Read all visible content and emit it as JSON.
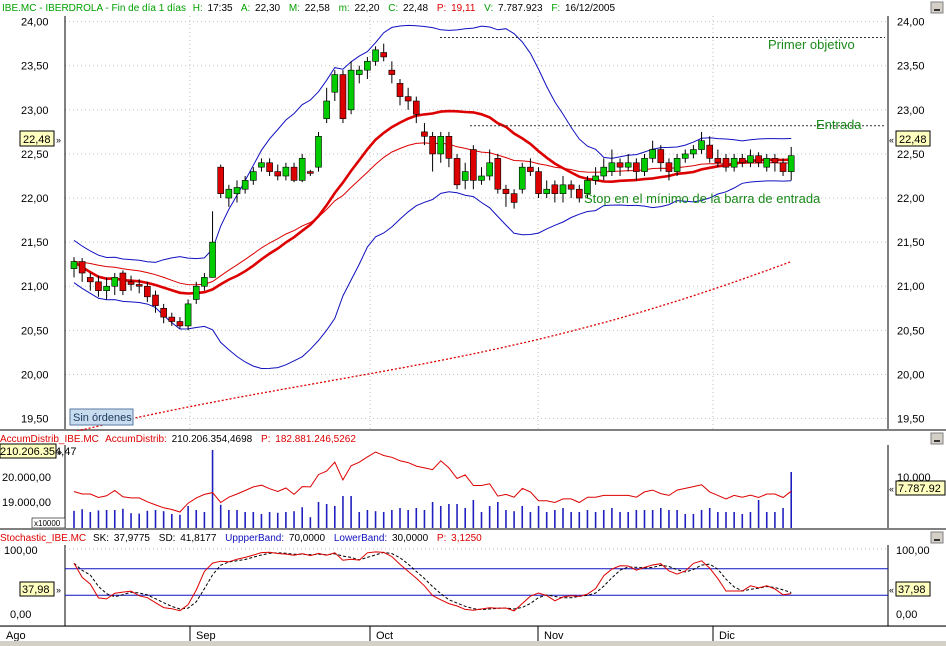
{
  "header": {
    "symbol": "IBE.MC",
    "name": "IBERDROLA",
    "period": "Fin de día 1 días",
    "h_label": "H:",
    "h_value": "17:35",
    "a_label": "A:",
    "a_value": "22,30",
    "m_label": "M:",
    "m_value": "22,58",
    "min_label": "m:",
    "min_value": "22,20",
    "c_label": "C:",
    "c_value": "22,48",
    "p_label": "P:",
    "p_value": "19,11",
    "v_label": "V:",
    "v_value": "7.787.923",
    "f_label": "F:",
    "f_value": "16/12/2005"
  },
  "price_axis": {
    "ticks": [
      "24,00",
      "23,50",
      "23,00",
      "22,50",
      "22,00",
      "21,50",
      "21,00",
      "20,50",
      "20,00",
      "19,50"
    ],
    "current": "22,48"
  },
  "annotations": {
    "primer_objetivo": "Primer objetivo",
    "entrada": "Entrada",
    "stop": "Stop en el mínimo de la barra de entrada",
    "orders_button": "Sin órdenes"
  },
  "accum_panel": {
    "name": "AccumDistrib_IBE.MC",
    "label": "AccumDistrib:",
    "value": "210.206.354,4698",
    "p_label": "P:",
    "p_value": "182.881.246,5262",
    "left_top": "210.206.354,47",
    "left_mid": "20.000,00",
    "left_low": "19.000,00",
    "scale": "x10000",
    "right_tick": "10.000",
    "right_current": "7.787.92"
  },
  "stoch_panel": {
    "name": "Stochastic_IBE.MC",
    "sk_label": "SK:",
    "sk": "37,9775",
    "sd_label": "SD:",
    "sd": "41,8177",
    "upper_label": "UppperBand:",
    "upper": "70,0000",
    "lower_label": "LowerBand:",
    "lower": "30,0000",
    "p_label": "P:",
    "p": "3,1250",
    "ticks": [
      "100,00",
      "0,00"
    ],
    "current": "37,98"
  },
  "x_axis": {
    "months": [
      "Ago",
      "Sep",
      "Oct",
      "Nov",
      "Dic"
    ]
  },
  "colors": {
    "up": "#00cc00",
    "down": "#dd0000",
    "bollinger": "#1010c0",
    "ma_thick": "#dd0000",
    "trend": "#dd0000",
    "volume": "#2020c0"
  },
  "chart_data": {
    "type": "candlestick",
    "title": "IBE.MC - IBERDROLA",
    "ylim": [
      19.2,
      24.2
    ],
    "x": [
      "Ago",
      "Sep",
      "Oct",
      "Nov",
      "Dic"
    ],
    "candles": [
      {
        "o": 21.2,
        "c": 21.28,
        "h": 21.33,
        "l": 21.1
      },
      {
        "o": 21.28,
        "c": 21.15,
        "h": 21.32,
        "l": 21.05
      },
      {
        "o": 21.1,
        "c": 21.05,
        "h": 21.15,
        "l": 20.95
      },
      {
        "o": 21.05,
        "c": 20.95,
        "h": 21.12,
        "l": 20.88
      },
      {
        "o": 20.95,
        "c": 21.0,
        "h": 21.1,
        "l": 20.85
      },
      {
        "o": 21.0,
        "c": 21.1,
        "h": 21.15,
        "l": 20.9
      },
      {
        "o": 21.15,
        "c": 20.95,
        "h": 21.18,
        "l": 20.9
      },
      {
        "o": 21.05,
        "c": 21.02,
        "h": 21.12,
        "l": 20.95
      },
      {
        "o": 21.02,
        "c": 21.0,
        "h": 21.08,
        "l": 20.92
      },
      {
        "o": 21.0,
        "c": 20.88,
        "h": 21.05,
        "l": 20.82
      },
      {
        "o": 20.9,
        "c": 20.78,
        "h": 20.95,
        "l": 20.7
      },
      {
        "o": 20.75,
        "c": 20.65,
        "h": 20.8,
        "l": 20.58
      },
      {
        "o": 20.65,
        "c": 20.6,
        "h": 20.7,
        "l": 20.55
      },
      {
        "o": 20.6,
        "c": 20.55,
        "h": 20.65,
        "l": 20.52
      },
      {
        "o": 20.55,
        "c": 20.8,
        "h": 20.85,
        "l": 20.5
      },
      {
        "o": 20.85,
        "c": 21.0,
        "h": 21.05,
        "l": 20.8
      },
      {
        "o": 21.0,
        "c": 21.1,
        "h": 21.15,
        "l": 20.95
      },
      {
        "o": 21.1,
        "c": 21.5,
        "h": 21.85,
        "l": 21.1
      },
      {
        "o": 22.35,
        "c": 22.05,
        "h": 22.38,
        "l": 22.0
      },
      {
        "o": 22.0,
        "c": 22.1,
        "h": 22.15,
        "l": 21.9
      },
      {
        "o": 22.05,
        "c": 22.12,
        "h": 22.2,
        "l": 21.95
      },
      {
        "o": 22.1,
        "c": 22.2,
        "h": 22.25,
        "l": 22.05
      },
      {
        "o": 22.2,
        "c": 22.3,
        "h": 22.35,
        "l": 22.15
      },
      {
        "o": 22.35,
        "c": 22.4,
        "h": 22.45,
        "l": 22.3
      },
      {
        "o": 22.4,
        "c": 22.3,
        "h": 22.45,
        "l": 22.25
      },
      {
        "o": 22.3,
        "c": 22.25,
        "h": 22.38,
        "l": 22.2
      },
      {
        "o": 22.25,
        "c": 22.35,
        "h": 22.4,
        "l": 22.2
      },
      {
        "o": 22.35,
        "c": 22.2,
        "h": 22.4,
        "l": 22.18
      },
      {
        "o": 22.2,
        "c": 22.45,
        "h": 22.5,
        "l": 22.18
      },
      {
        "o": 22.3,
        "c": 22.28,
        "h": 22.32,
        "l": 22.25
      },
      {
        "o": 22.35,
        "c": 22.7,
        "h": 22.75,
        "l": 22.3
      },
      {
        "o": 22.9,
        "c": 23.1,
        "h": 23.25,
        "l": 22.85
      },
      {
        "o": 23.2,
        "c": 23.4,
        "h": 23.45,
        "l": 23.1
      },
      {
        "o": 23.4,
        "c": 22.9,
        "h": 23.45,
        "l": 22.85
      },
      {
        "o": 23.0,
        "c": 23.45,
        "h": 23.55,
        "l": 22.95
      },
      {
        "o": 23.4,
        "c": 23.45,
        "h": 23.5,
        "l": 23.3
      },
      {
        "o": 23.45,
        "c": 23.55,
        "h": 23.6,
        "l": 23.35
      },
      {
        "o": 23.55,
        "c": 23.68,
        "h": 23.72,
        "l": 23.5
      },
      {
        "o": 23.65,
        "c": 23.6,
        "h": 23.75,
        "l": 23.55
      },
      {
        "o": 23.45,
        "c": 23.4,
        "h": 23.55,
        "l": 23.3
      },
      {
        "o": 23.3,
        "c": 23.15,
        "h": 23.35,
        "l": 23.05
      },
      {
        "o": 23.15,
        "c": 23.1,
        "h": 23.25,
        "l": 23.0
      },
      {
        "o": 23.1,
        "c": 22.95,
        "h": 23.15,
        "l": 22.85
      },
      {
        "o": 22.75,
        "c": 22.7,
        "h": 22.85,
        "l": 22.6
      },
      {
        "o": 22.7,
        "c": 22.5,
        "h": 22.75,
        "l": 22.3
      },
      {
        "o": 22.5,
        "c": 22.7,
        "h": 22.75,
        "l": 22.4
      },
      {
        "o": 22.7,
        "c": 22.45,
        "h": 22.75,
        "l": 22.35
      },
      {
        "o": 22.45,
        "c": 22.15,
        "h": 22.5,
        "l": 22.1
      },
      {
        "o": 22.2,
        "c": 22.3,
        "h": 22.4,
        "l": 22.1
      },
      {
        "o": 22.55,
        "c": 22.2,
        "h": 22.6,
        "l": 22.1
      },
      {
        "o": 22.2,
        "c": 22.25,
        "h": 22.35,
        "l": 22.15
      },
      {
        "o": 22.25,
        "c": 22.4,
        "h": 22.55,
        "l": 22.2
      },
      {
        "o": 22.45,
        "c": 22.1,
        "h": 22.5,
        "l": 22.05
      },
      {
        "o": 22.1,
        "c": 22.05,
        "h": 22.15,
        "l": 21.9
      },
      {
        "o": 22.05,
        "c": 21.95,
        "h": 22.1,
        "l": 21.88
      },
      {
        "o": 22.1,
        "c": 22.35,
        "h": 22.4,
        "l": 22.05
      },
      {
        "o": 22.35,
        "c": 22.3,
        "h": 22.45,
        "l": 22.25
      },
      {
        "o": 22.3,
        "c": 22.05,
        "h": 22.35,
        "l": 22.0
      },
      {
        "o": 22.05,
        "c": 22.1,
        "h": 22.2,
        "l": 22.0
      },
      {
        "o": 22.15,
        "c": 22.05,
        "h": 22.2,
        "l": 21.95
      },
      {
        "o": 22.05,
        "c": 22.15,
        "h": 22.25,
        "l": 21.95
      },
      {
        "o": 22.15,
        "c": 22.1,
        "h": 22.2,
        "l": 22.0
      },
      {
        "o": 22.1,
        "c": 22.0,
        "h": 22.15,
        "l": 21.95
      },
      {
        "o": 22.05,
        "c": 22.2,
        "h": 22.25,
        "l": 22.0
      },
      {
        "o": 22.2,
        "c": 22.25,
        "h": 22.35,
        "l": 22.15
      },
      {
        "o": 22.25,
        "c": 22.35,
        "h": 22.45,
        "l": 22.2
      },
      {
        "o": 22.3,
        "c": 22.4,
        "h": 22.55,
        "l": 22.25
      },
      {
        "o": 22.4,
        "c": 22.35,
        "h": 22.45,
        "l": 22.25
      },
      {
        "o": 22.35,
        "c": 22.4,
        "h": 22.5,
        "l": 22.3
      },
      {
        "o": 22.4,
        "c": 22.3,
        "h": 22.45,
        "l": 22.2
      },
      {
        "o": 22.3,
        "c": 22.45,
        "h": 22.5,
        "l": 22.25
      },
      {
        "o": 22.45,
        "c": 22.55,
        "h": 22.65,
        "l": 22.4
      },
      {
        "o": 22.55,
        "c": 22.4,
        "h": 22.6,
        "l": 22.3
      },
      {
        "o": 22.4,
        "c": 22.3,
        "h": 22.45,
        "l": 22.2
      },
      {
        "o": 22.3,
        "c": 22.45,
        "h": 22.5,
        "l": 22.25
      },
      {
        "o": 22.45,
        "c": 22.5,
        "h": 22.55,
        "l": 22.4
      },
      {
        "o": 22.5,
        "c": 22.55,
        "h": 22.6,
        "l": 22.45
      },
      {
        "o": 22.55,
        "c": 22.65,
        "h": 22.75,
        "l": 22.5
      },
      {
        "o": 22.6,
        "c": 22.45,
        "h": 22.7,
        "l": 22.4
      },
      {
        "o": 22.45,
        "c": 22.4,
        "h": 22.55,
        "l": 22.35
      },
      {
        "o": 22.45,
        "c": 22.35,
        "h": 22.5,
        "l": 22.3
      },
      {
        "o": 22.35,
        "c": 22.45,
        "h": 22.5,
        "l": 22.3
      },
      {
        "o": 22.45,
        "c": 22.4,
        "h": 22.5,
        "l": 22.35
      },
      {
        "o": 22.4,
        "c": 22.48,
        "h": 22.55,
        "l": 22.35
      },
      {
        "o": 22.48,
        "c": 22.4,
        "h": 22.52,
        "l": 22.35
      },
      {
        "o": 22.35,
        "c": 22.45,
        "h": 22.5,
        "l": 22.3
      },
      {
        "o": 22.45,
        "c": 22.4,
        "h": 22.5,
        "l": 22.3
      },
      {
        "o": 22.4,
        "c": 22.3,
        "h": 22.45,
        "l": 22.25
      },
      {
        "o": 22.3,
        "c": 22.48,
        "h": 22.58,
        "l": 22.2
      }
    ],
    "levels": {
      "primer_objetivo": 23.82,
      "entrada": 22.82
    },
    "stochastic": {
      "upper_band": 70,
      "lower_band": 30,
      "ylim": [
        0,
        100
      ]
    }
  }
}
